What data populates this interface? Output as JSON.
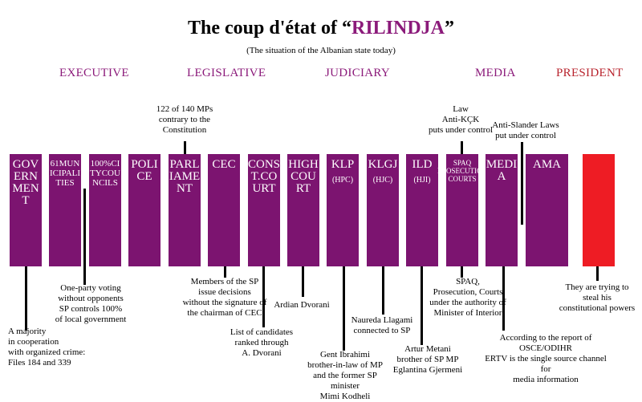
{
  "title": {
    "prefix": "The coup d'état of “",
    "highlight": "RILINDJA",
    "suffix": "”"
  },
  "subtitle": "(The situation of the Albanian state today)",
  "categories": {
    "executive": "EXECUTIVE",
    "legislative": "LEGISLATIVE",
    "judiciary": "JUDICIARY",
    "media": "MEDIA",
    "president": "PRESIDENT"
  },
  "colors": {
    "column": "#7c1470",
    "president_bar": "#ee1c24",
    "category": "#8b1a7a"
  },
  "columns": [
    {
      "label": "GOVERNMENT",
      "sub": ""
    },
    {
      "label": "61MUNICIPALITIES",
      "sub": ""
    },
    {
      "label": "100%CITYCOUNCILS",
      "sub": ""
    },
    {
      "label": "POLICE",
      "sub": ""
    },
    {
      "label": "PARLIAMENT",
      "sub": ""
    },
    {
      "label": "CEC",
      "sub": ""
    },
    {
      "label": "CONST.COURT",
      "sub": ""
    },
    {
      "label": "HIGHCOURT",
      "sub": ""
    },
    {
      "label": "KLP",
      "sub": "(HPC)"
    },
    {
      "label": "KLGJ",
      "sub": "(HJC)"
    },
    {
      "label": "ILD",
      "sub": "(HJI)"
    },
    {
      "label": "SPAQ\nPROSECUTION\nCOURTS",
      "sub": ""
    },
    {
      "label": "MEDIA",
      "sub": ""
    },
    {
      "label": "AMA",
      "sub": ""
    },
    {
      "label": "",
      "sub": ""
    }
  ],
  "notes": {
    "parliament_top": "122 of 140 MPs\ncontrary to the\nConstitution",
    "spaq_top": "Law\nAnti-KÇK\nputs under control",
    "ama_top": "Anti-Slander Laws\nput under control",
    "government": "A majority\nin cooperation\nwith organized crime:\nFiles 184 and 339",
    "municipalities": "One-party voting\nwithout opponents\nSP controls 100%\nof local government",
    "cec": "Members of the SP\nissue decisions\nwithout the signature of\nthe chairman of CEC",
    "const_court": "List of candidates\nranked through\nA. Dvorani",
    "high_court": "Ardian Dvorani",
    "klp": "Gent Ibrahimi\nbrother-in-law of MP\nand the former SP minister\nMimi Kodheli",
    "klgj": "Naureda Llagami\nconnected to SP",
    "ild": "Artur Metani\nbrother of SP MP\nEglantina Gjermeni",
    "spaq": "SPAQ,\nProsecution, Courts\nunder the authority of\nMinister of Interior",
    "media": "According to the report of\nOSCE/ODIHR\nERTV is the single source channel for\nmedia information",
    "president": "They are trying to\nsteal his\nconstitutional powers"
  }
}
